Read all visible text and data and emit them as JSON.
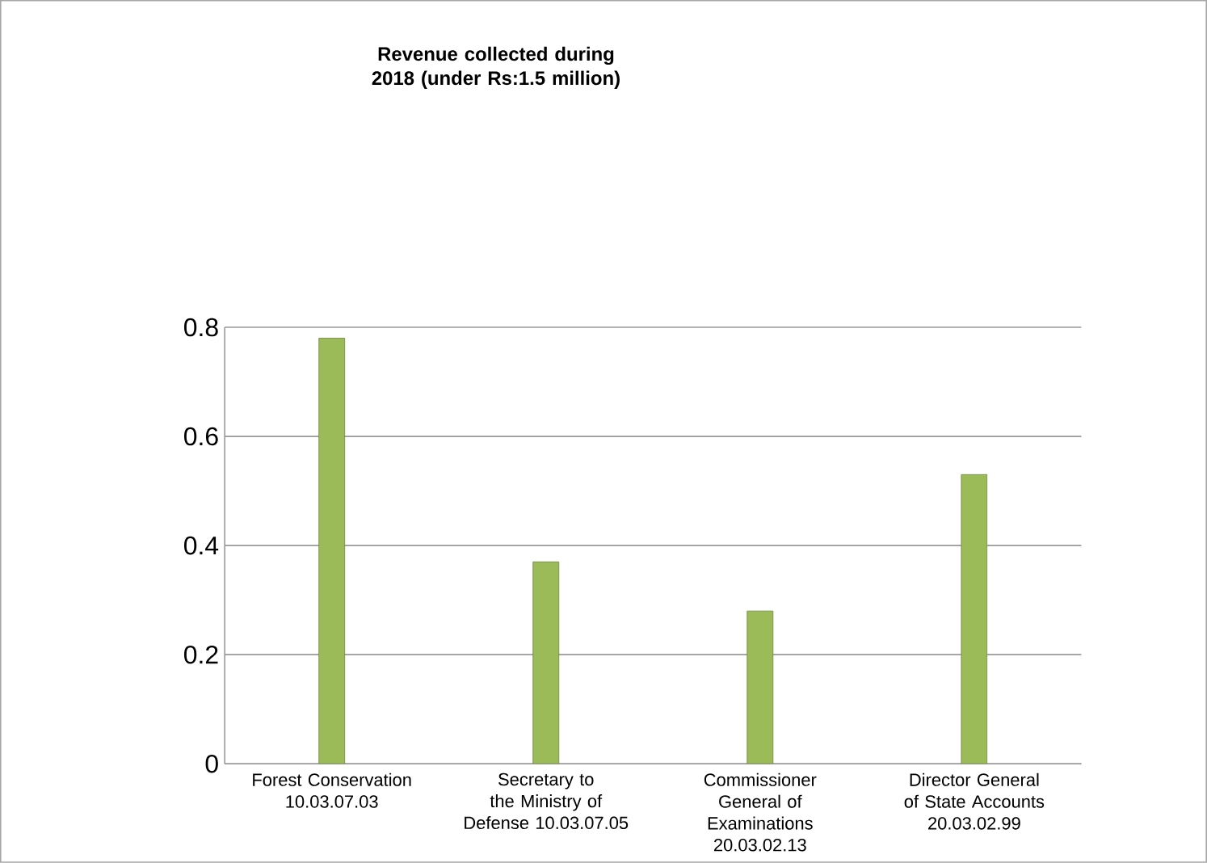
{
  "chart_data": {
    "type": "bar",
    "title": "Revenue collected during 2018 (under Rs:1.5 million)",
    "categories": [
      "Forest Conservation 10.03.07.03",
      "Secretary to the Ministry of Defense 10.03.07.05",
      "Commissioner General of Examinations 20.03.02.13",
      "Director General of State Accounts 20.03.02.99"
    ],
    "values": [
      0.78,
      0.37,
      0.28,
      0.53
    ],
    "color": "#9bbb59",
    "ylim": [
      0,
      0.8
    ],
    "yticks": [
      0,
      0.2,
      0.4,
      0.6,
      0.8
    ],
    "grid": "y"
  }
}
